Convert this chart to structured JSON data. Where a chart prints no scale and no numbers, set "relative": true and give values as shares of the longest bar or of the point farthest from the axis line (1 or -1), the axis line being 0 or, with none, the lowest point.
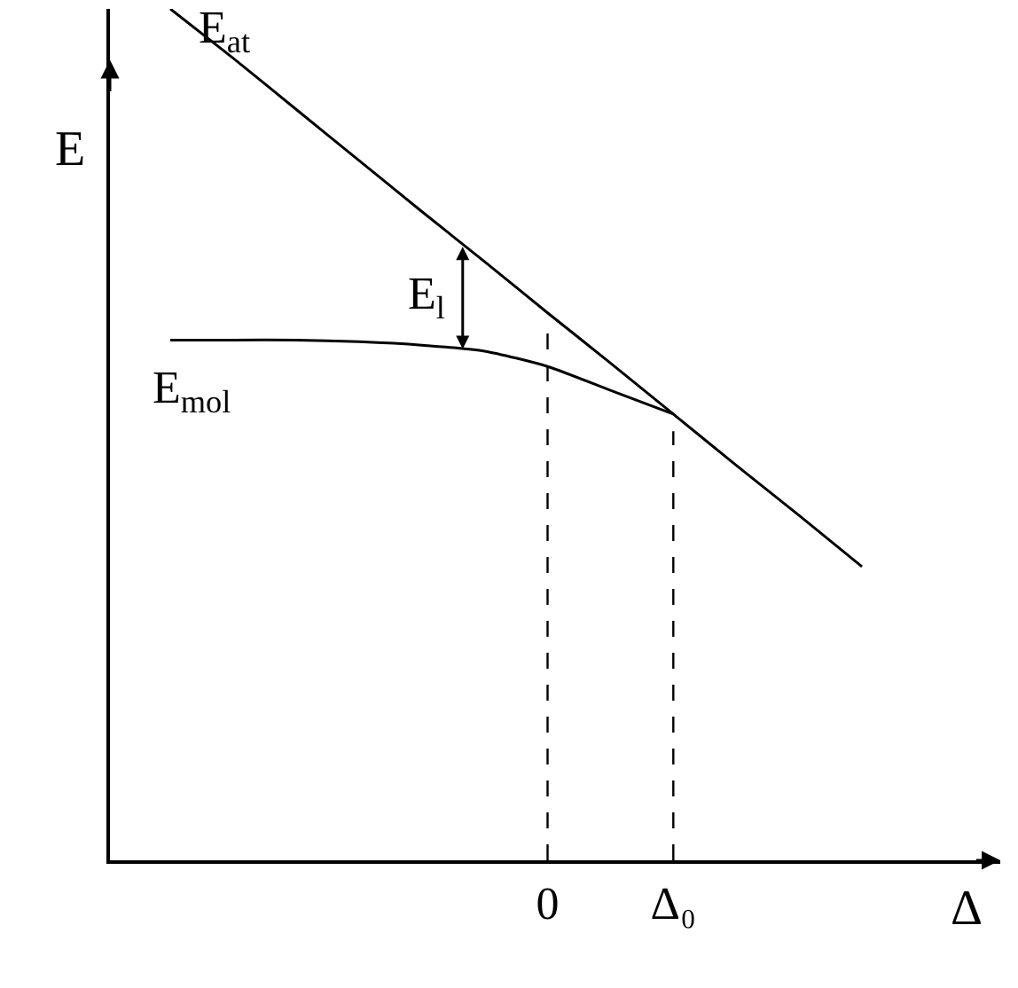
{
  "chart_data": {
    "type": "line",
    "relative": true,
    "xlabel": "Δ",
    "ylabel": "E",
    "categories": [
      null,
      null,
      null,
      null,
      null,
      null,
      "0",
      null,
      "Δ₀",
      null,
      null,
      null,
      null
    ],
    "series": [
      {
        "name": "E$_{at}$",
        "color": "#000000",
        "values": [
          1.0,
          0.942,
          0.882,
          0.822,
          0.762,
          0.703,
          0.643,
          0.584,
          0.524,
          0.464,
          0.405,
          0.345,
          null
        ]
      },
      {
        "name": "E$_{mol}$",
        "color": "#000000",
        "values": [
          0.611,
          0.611,
          0.611,
          0.609,
          0.605,
          0.598,
          0.58,
          0.552,
          0.524,
          null,
          null,
          null,
          null
        ]
      }
    ],
    "ref_lines": [
      {
        "axis": "x",
        "value": "0",
        "line_style": "dashed"
      },
      {
        "axis": "x",
        "value": "Δ₀",
        "line_style": "dashed"
      }
    ],
    "annotations": [
      "E$_{l}$"
    ],
    "grid": false,
    "legend": false,
    "marker": "none",
    "line_style": "solid"
  }
}
